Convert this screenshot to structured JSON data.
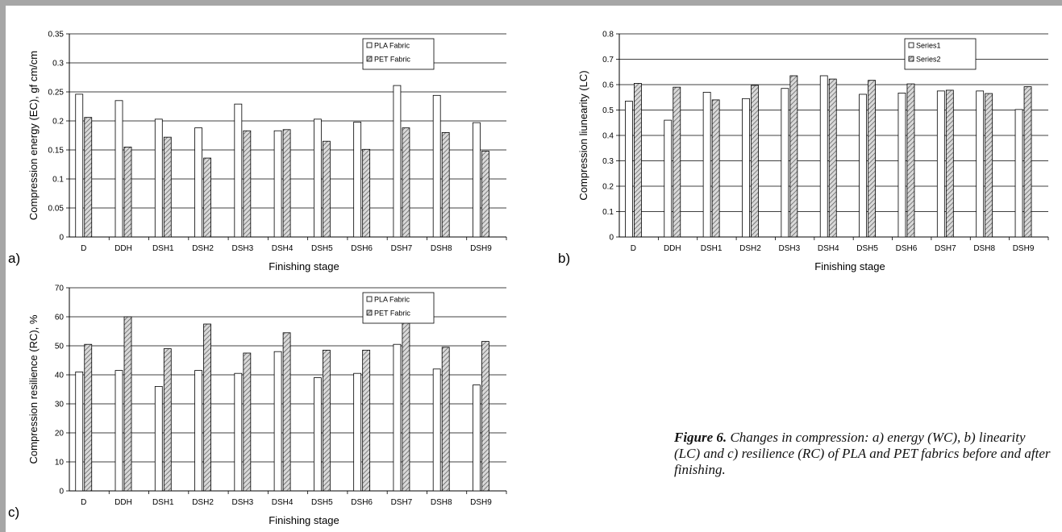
{
  "caption": {
    "label": "Figure 6.",
    "text": "Changes in compression: a) energy (WC), b) linearity (LC) and c) resilience (RC) of PLA and PET fabrics before and after finishing."
  },
  "colors": {
    "frame": "#a6a6a6",
    "series1": "#ffffff",
    "series2": "#8c8c8c"
  },
  "chart_data": [
    {
      "panel": "a)",
      "type": "bar",
      "ylabel": "Compression energy (EC), gf cm/cm",
      "xlabel": "Finishing stage",
      "ylim": [
        0,
        0.35
      ],
      "yticks": [
        "0",
        "0.05",
        "0.1",
        "0.15",
        "0.2",
        "0.25",
        "0.3",
        "0.35"
      ],
      "categories": [
        "D",
        "DDH",
        "DSH1",
        "DSH2",
        "DSH3",
        "DSH4",
        "DSH5",
        "DSH6",
        "DSH7",
        "DSH8",
        "DSH9"
      ],
      "legend_position": "top-right",
      "series": [
        {
          "name": "PLA Fabric",
          "values": [
            0.246,
            0.235,
            0.203,
            0.188,
            0.229,
            0.183,
            0.203,
            0.198,
            0.261,
            0.244,
            0.197
          ]
        },
        {
          "name": "PET Fabric",
          "values": [
            0.206,
            0.155,
            0.172,
            0.136,
            0.183,
            0.185,
            0.165,
            0.151,
            0.188,
            0.18,
            0.148
          ]
        }
      ]
    },
    {
      "panel": "b)",
      "type": "bar",
      "ylabel": "Compression liunearity (LC)",
      "xlabel": "Finishing stage",
      "ylim": [
        0,
        0.8
      ],
      "yticks": [
        "0",
        "0.1",
        "0.2",
        "0.3",
        "0.4",
        "0.5",
        "0.6",
        "0.7",
        "0.8"
      ],
      "categories": [
        "D",
        "DDH",
        "DSH1",
        "DSH2",
        "DSH3",
        "DSH4",
        "DSH5",
        "DSH6",
        "DSH7",
        "DSH8",
        "DSH9"
      ],
      "legend_position": "top-right",
      "series": [
        {
          "name": "Series1",
          "values": [
            0.535,
            0.46,
            0.57,
            0.545,
            0.585,
            0.635,
            0.562,
            0.567,
            0.575,
            0.575,
            0.502
          ]
        },
        {
          "name": "Series2",
          "values": [
            0.605,
            0.59,
            0.54,
            0.597,
            0.635,
            0.622,
            0.617,
            0.603,
            0.578,
            0.565,
            0.592
          ]
        }
      ]
    },
    {
      "panel": "c)",
      "type": "bar",
      "ylabel": "Compression resilience (RC), %",
      "xlabel": "Finishing stage",
      "ylim": [
        0,
        70
      ],
      "yticks": [
        "0",
        "10",
        "20",
        "30",
        "40",
        "50",
        "60",
        "70"
      ],
      "categories": [
        "D",
        "DDH",
        "DSH1",
        "DSH2",
        "DSH3",
        "DSH4",
        "DSH5",
        "DSH6",
        "DSH7",
        "DSH8",
        "DSH9"
      ],
      "legend_position": "top-right",
      "series": [
        {
          "name": "PLA Fabric",
          "values": [
            41,
            41.5,
            36,
            41.5,
            40.5,
            48,
            39,
            40.5,
            50.5,
            42,
            36.5
          ]
        },
        {
          "name": "PET Fabric",
          "values": [
            50.5,
            60,
            49,
            57.5,
            47.5,
            54.5,
            48.5,
            48.5,
            59,
            49.5,
            51.5
          ]
        }
      ]
    }
  ]
}
